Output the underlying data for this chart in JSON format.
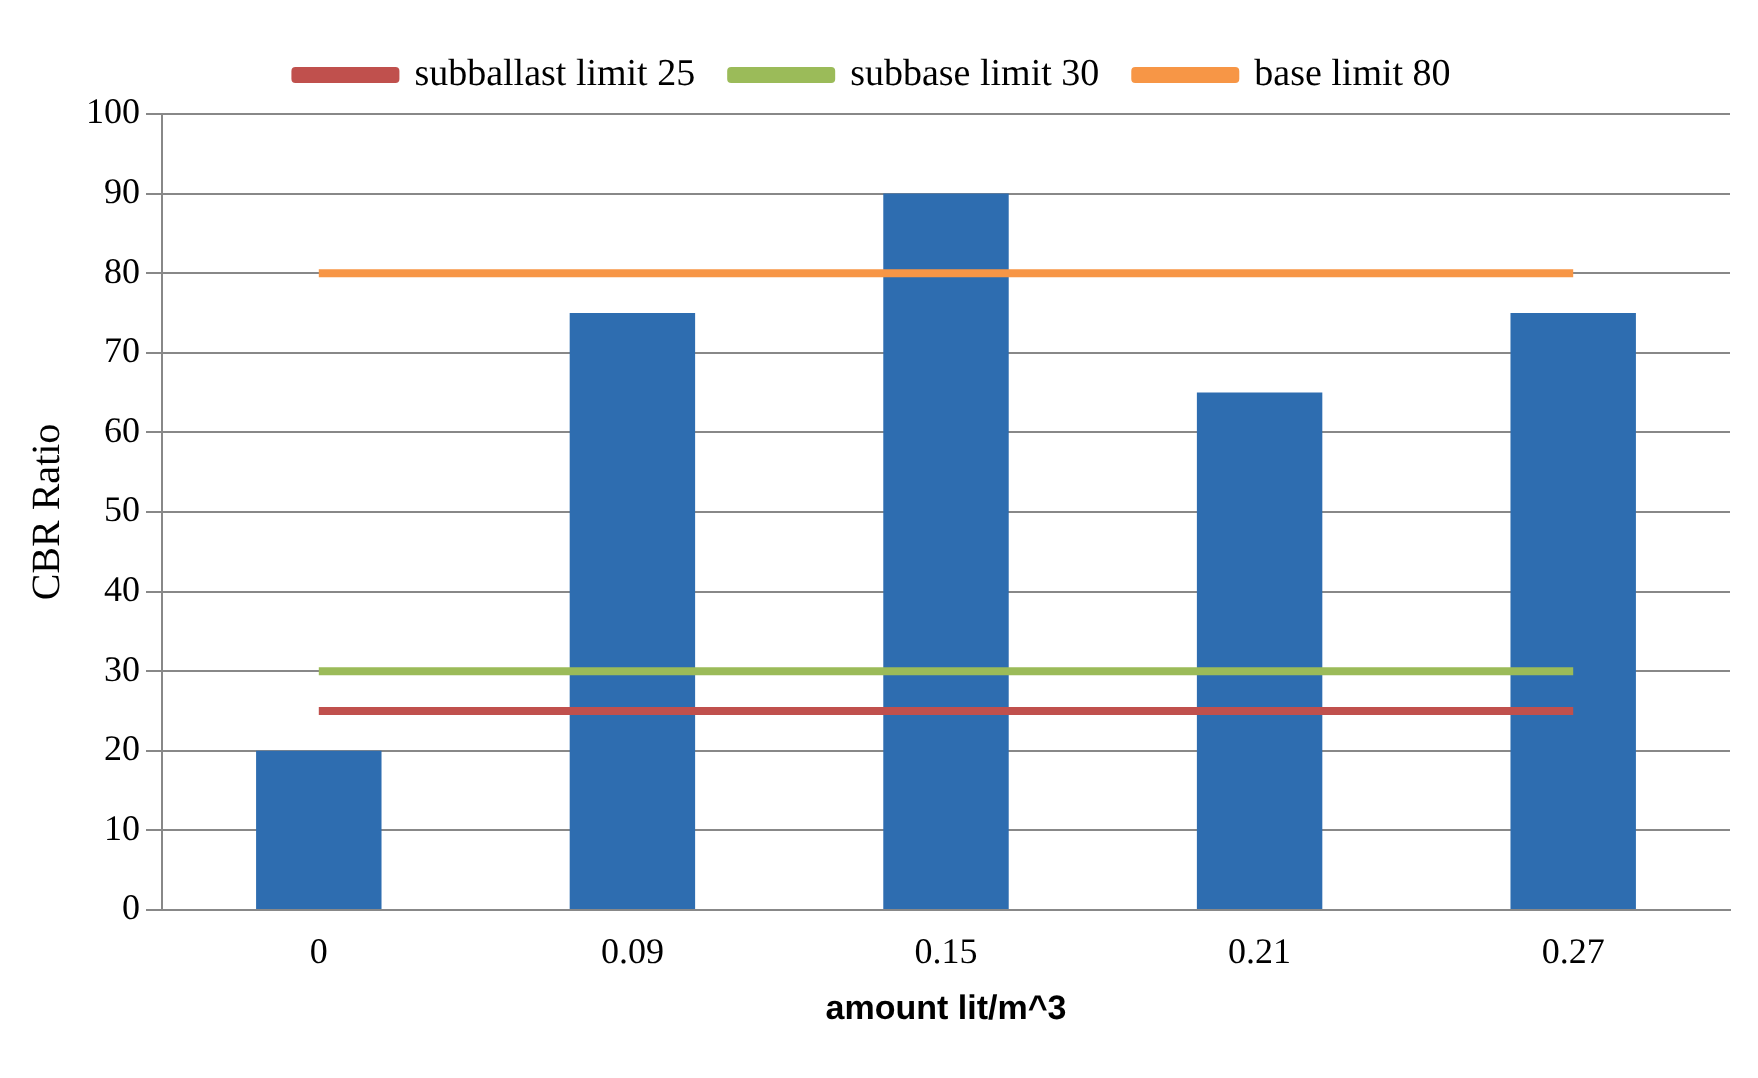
{
  "chart_data": {
    "type": "bar",
    "xlabel": "amount lit/m^3",
    "ylabel": "CBR Ratio",
    "categories": [
      "0",
      "0.09",
      "0.15",
      "0.21",
      "0.27"
    ],
    "series": [
      {
        "color": "#2e6db0",
        "values": [
          20,
          75,
          90,
          65,
          75
        ]
      },
      {
        "type": "line",
        "name": "subballast limit 25",
        "color": "#c0504d",
        "values": [
          25,
          25,
          25,
          25,
          25
        ]
      },
      {
        "type": "line",
        "name": "subbase limit 30",
        "color": "#9bbb59",
        "values": [
          30,
          30,
          30,
          30,
          30
        ]
      },
      {
        "type": "line",
        "name": "base limit 80",
        "color": "#f79646",
        "values": [
          80,
          80,
          80,
          80,
          80
        ]
      }
    ],
    "ylim": [
      0,
      100
    ],
    "yticks": [
      0,
      10,
      20,
      30,
      40,
      50,
      60,
      70,
      80,
      90,
      100
    ],
    "grid": "y",
    "legend": "top",
    "marker": "none"
  }
}
